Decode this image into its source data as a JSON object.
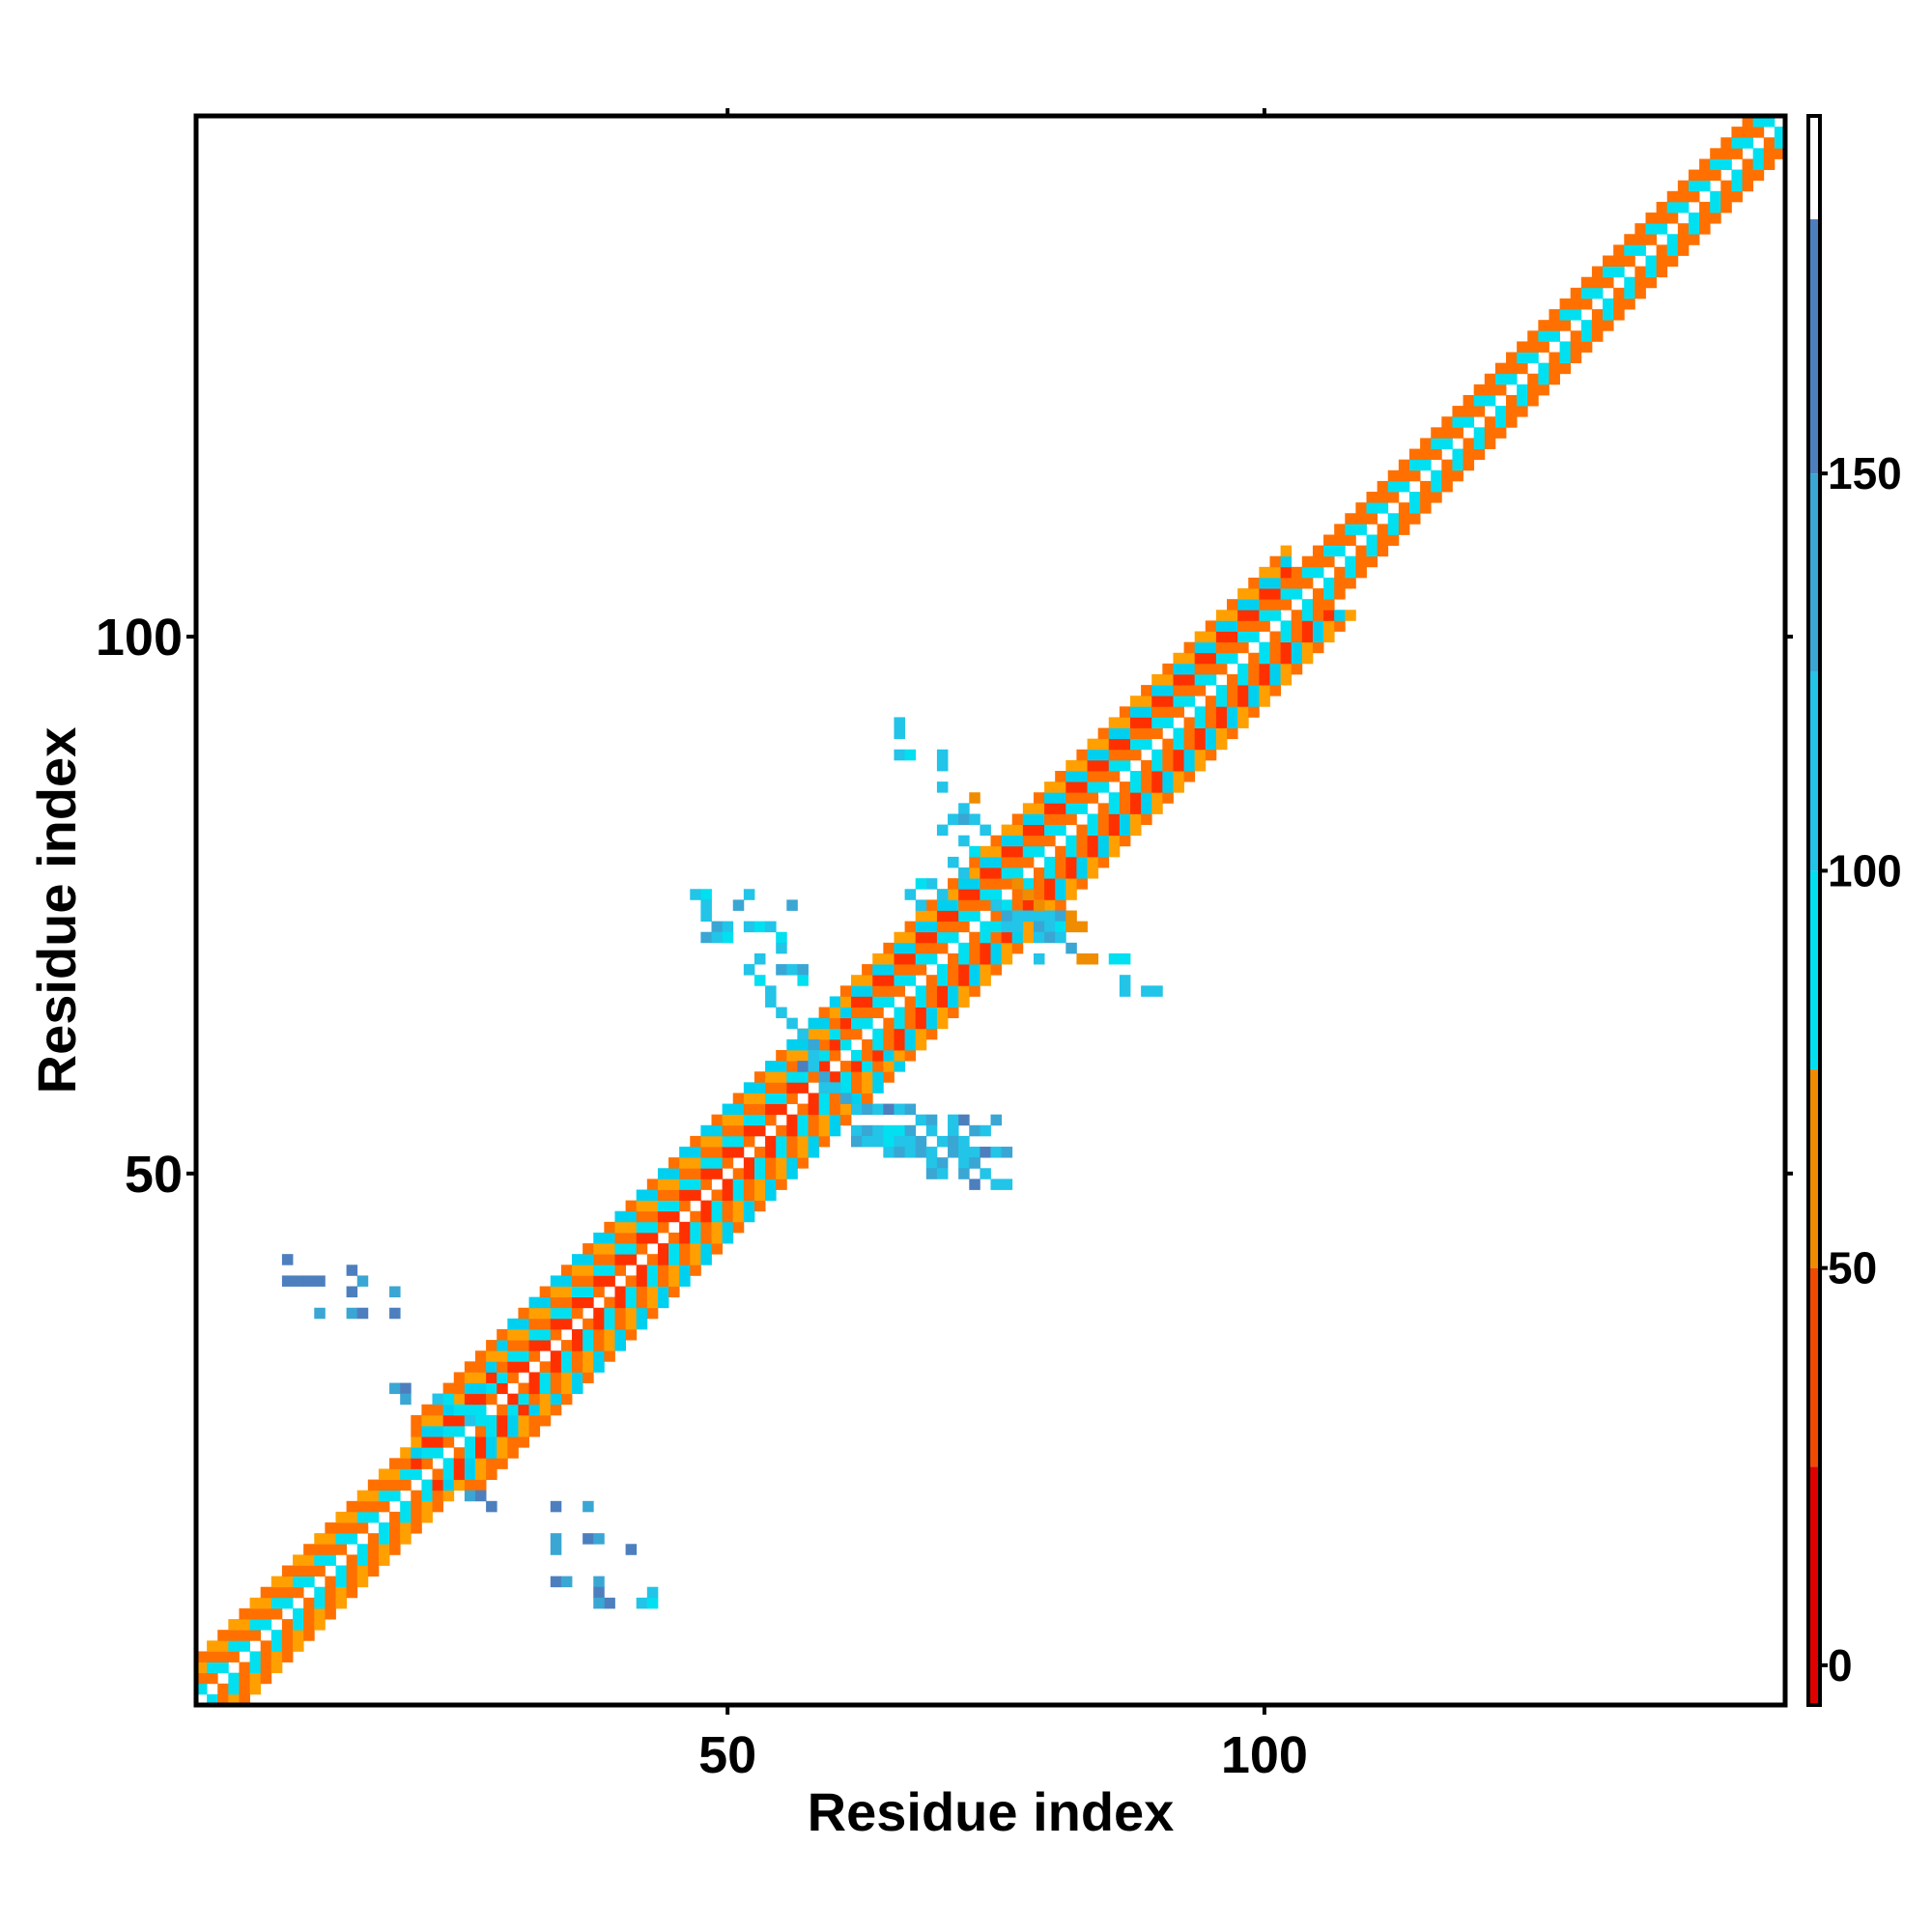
{
  "chart_data": {
    "type": "heatmap",
    "title": "",
    "xlabel": "Residue index",
    "ylabel": "Residue index",
    "xlim": [
      1,
      148
    ],
    "ylim": [
      1,
      148
    ],
    "x_ticks": [
      50,
      100
    ],
    "y_ticks": [
      50,
      100
    ],
    "grid": false,
    "colorbar": {
      "ticks": [
        0,
        50,
        100,
        150
      ],
      "range": [
        -5,
        195
      ],
      "bands": [
        {
          "from": -5,
          "to": 25,
          "color": "#e00000"
        },
        {
          "from": 25,
          "to": 50,
          "color": "#f04a00"
        },
        {
          "from": 50,
          "to": 75,
          "color": "#f08c00"
        },
        {
          "from": 75,
          "to": 100,
          "color": "#00e0f0"
        },
        {
          "from": 100,
          "to": 125,
          "color": "#22c4e8"
        },
        {
          "from": 125,
          "to": 150,
          "color": "#3aa6d4"
        },
        {
          "from": 150,
          "to": 182,
          "color": "#4d7fbf"
        },
        {
          "from": 182,
          "to": 195,
          "color": "#ffffff"
        }
      ]
    },
    "diagonal_band": {
      "segments": [
        {
          "from": 1,
          "to": 20,
          "pattern": [
            "#ff7000",
            "#00e0f0",
            "#ff7000",
            "#ffa000"
          ]
        },
        {
          "from": 20,
          "to": 28,
          "pattern": [
            "#ff7000",
            "#00e0f0",
            "#ff3000",
            "#00d0f0",
            "#ffa000",
            "#ff7000"
          ]
        },
        {
          "from": 28,
          "to": 60,
          "pattern": [
            "#ff7000",
            "#ff3000",
            "#00e0f0",
            "#ff7000",
            "#ffa000",
            "#00d0f0"
          ]
        },
        {
          "from": 60,
          "to": 102,
          "pattern": [
            "#ff7000",
            "#00e0f0",
            "#ff7000",
            "#ff3000",
            "#00d0f0",
            "#ffa000"
          ]
        },
        {
          "from": 102,
          "to": 148,
          "pattern": [
            "#ff7000",
            "#00e0f0",
            "#ff7000"
          ]
        }
      ]
    },
    "offdiagonal_contacts": [
      {
        "x": 9,
        "y": 42,
        "v": 160
      },
      {
        "x": 9,
        "y": 40,
        "v": 155
      },
      {
        "x": 10,
        "y": 40,
        "v": 155
      },
      {
        "x": 11,
        "y": 40,
        "v": 150
      },
      {
        "x": 12,
        "y": 40,
        "v": 150
      },
      {
        "x": 12,
        "y": 37,
        "v": 140
      },
      {
        "x": 15,
        "y": 41,
        "v": 160
      },
      {
        "x": 15,
        "y": 39,
        "v": 150
      },
      {
        "x": 16,
        "y": 40,
        "v": 140
      },
      {
        "x": 15,
        "y": 37,
        "v": 140
      },
      {
        "x": 16,
        "y": 37,
        "v": 150
      },
      {
        "x": 19,
        "y": 39,
        "v": 140
      },
      {
        "x": 19,
        "y": 37,
        "v": 150
      },
      {
        "x": 19,
        "y": 30,
        "v": 140
      },
      {
        "x": 20,
        "y": 30,
        "v": 150
      },
      {
        "x": 20,
        "y": 29,
        "v": 140
      },
      {
        "x": 23,
        "y": 29,
        "v": 110
      },
      {
        "x": 24,
        "y": 29,
        "v": 95
      },
      {
        "x": 25,
        "y": 28,
        "v": 95
      },
      {
        "x": 26,
        "y": 27,
        "v": 110
      },
      {
        "x": 27,
        "y": 27,
        "v": 95
      },
      {
        "x": 26,
        "y": 20,
        "v": 140
      },
      {
        "x": 27,
        "y": 20,
        "v": 150
      },
      {
        "x": 28,
        "y": 19,
        "v": 150
      },
      {
        "x": 34,
        "y": 19,
        "v": 150
      },
      {
        "x": 37,
        "y": 19,
        "v": 140
      },
      {
        "x": 34,
        "y": 16,
        "v": 140
      },
      {
        "x": 34,
        "y": 15,
        "v": 140
      },
      {
        "x": 37,
        "y": 16,
        "v": 150
      },
      {
        "x": 38,
        "y": 16,
        "v": 140
      },
      {
        "x": 41,
        "y": 15,
        "v": 150
      },
      {
        "x": 34,
        "y": 12,
        "v": 150
      },
      {
        "x": 35,
        "y": 12,
        "v": 140
      },
      {
        "x": 38,
        "y": 12,
        "v": 140
      },
      {
        "x": 38,
        "y": 11,
        "v": 150
      },
      {
        "x": 39,
        "y": 10,
        "v": 150
      },
      {
        "x": 38,
        "y": 10,
        "v": 140
      },
      {
        "x": 42,
        "y": 10,
        "v": 110
      },
      {
        "x": 43,
        "y": 10,
        "v": 95
      },
      {
        "x": 43,
        "y": 11,
        "v": 110
      },
      {
        "x": 47,
        "y": 76,
        "v": 110
      },
      {
        "x": 48,
        "y": 76,
        "v": 95
      },
      {
        "x": 48,
        "y": 75,
        "v": 110
      },
      {
        "x": 48,
        "y": 74,
        "v": 110
      },
      {
        "x": 49,
        "y": 73,
        "v": 140
      },
      {
        "x": 50,
        "y": 73,
        "v": 110
      },
      {
        "x": 48,
        "y": 72,
        "v": 140
      },
      {
        "x": 49,
        "y": 72,
        "v": 110
      },
      {
        "x": 50,
        "y": 72,
        "v": 95
      },
      {
        "x": 52,
        "y": 76,
        "v": 110
      },
      {
        "x": 51,
        "y": 75,
        "v": 140
      },
      {
        "x": 52,
        "y": 73,
        "v": 110
      },
      {
        "x": 53,
        "y": 73,
        "v": 95
      },
      {
        "x": 54,
        "y": 73,
        "v": 110
      },
      {
        "x": 56,
        "y": 75,
        "v": 140
      },
      {
        "x": 55,
        "y": 72,
        "v": 95
      },
      {
        "x": 55,
        "y": 71,
        "v": 110
      },
      {
        "x": 53,
        "y": 70,
        "v": 110
      },
      {
        "x": 52,
        "y": 69,
        "v": 110
      },
      {
        "x": 53,
        "y": 68,
        "v": 95
      },
      {
        "x": 54,
        "y": 67,
        "v": 110
      },
      {
        "x": 54,
        "y": 66,
        "v": 110
      },
      {
        "x": 55,
        "y": 69,
        "v": 140
      },
      {
        "x": 56,
        "y": 69,
        "v": 110
      },
      {
        "x": 57,
        "y": 69,
        "v": 140
      },
      {
        "x": 57,
        "y": 68,
        "v": 95
      },
      {
        "x": 55,
        "y": 65,
        "v": 110
      },
      {
        "x": 56,
        "y": 64,
        "v": 110
      },
      {
        "x": 57,
        "y": 63,
        "v": 110
      },
      {
        "x": 58,
        "y": 62,
        "v": 140
      },
      {
        "x": 58,
        "y": 61,
        "v": 110
      },
      {
        "x": 57,
        "y": 60,
        "v": 150
      },
      {
        "x": 58,
        "y": 60,
        "v": 110
      },
      {
        "x": 59,
        "y": 59,
        "v": 140
      },
      {
        "x": 59,
        "y": 58,
        "v": 110
      },
      {
        "x": 60,
        "y": 58,
        "v": 110
      },
      {
        "x": 61,
        "y": 57,
        "v": 140
      },
      {
        "x": 62,
        "y": 56,
        "v": 110
      },
      {
        "x": 63,
        "y": 56,
        "v": 140
      },
      {
        "x": 64,
        "y": 56,
        "v": 110
      },
      {
        "x": 65,
        "y": 56,
        "v": 150
      },
      {
        "x": 66,
        "y": 56,
        "v": 110
      },
      {
        "x": 67,
        "y": 56,
        "v": 140
      },
      {
        "x": 68,
        "y": 55,
        "v": 110
      },
      {
        "x": 69,
        "y": 55,
        "v": 140
      },
      {
        "x": 71,
        "y": 55,
        "v": 110
      },
      {
        "x": 72,
        "y": 55,
        "v": 150
      },
      {
        "x": 75,
        "y": 55,
        "v": 140
      },
      {
        "x": 62,
        "y": 54,
        "v": 110
      },
      {
        "x": 63,
        "y": 54,
        "v": 140
      },
      {
        "x": 64,
        "y": 54,
        "v": 110
      },
      {
        "x": 65,
        "y": 54,
        "v": 95
      },
      {
        "x": 66,
        "y": 54,
        "v": 95
      },
      {
        "x": 67,
        "y": 54,
        "v": 140
      },
      {
        "x": 69,
        "y": 54,
        "v": 110
      },
      {
        "x": 71,
        "y": 54,
        "v": 110
      },
      {
        "x": 73,
        "y": 54,
        "v": 140
      },
      {
        "x": 74,
        "y": 54,
        "v": 110
      },
      {
        "x": 62,
        "y": 53,
        "v": 140
      },
      {
        "x": 63,
        "y": 53,
        "v": 110
      },
      {
        "x": 64,
        "y": 53,
        "v": 110
      },
      {
        "x": 65,
        "y": 53,
        "v": 95
      },
      {
        "x": 66,
        "y": 53,
        "v": 110
      },
      {
        "x": 67,
        "y": 53,
        "v": 110
      },
      {
        "x": 68,
        "y": 53,
        "v": 140
      },
      {
        "x": 70,
        "y": 53,
        "v": 110
      },
      {
        "x": 71,
        "y": 53,
        "v": 140
      },
      {
        "x": 72,
        "y": 53,
        "v": 110
      },
      {
        "x": 65,
        "y": 52,
        "v": 110
      },
      {
        "x": 66,
        "y": 52,
        "v": 140
      },
      {
        "x": 67,
        "y": 52,
        "v": 110
      },
      {
        "x": 68,
        "y": 52,
        "v": 140
      },
      {
        "x": 69,
        "y": 52,
        "v": 110
      },
      {
        "x": 71,
        "y": 52,
        "v": 140
      },
      {
        "x": 72,
        "y": 52,
        "v": 110
      },
      {
        "x": 73,
        "y": 52,
        "v": 110
      },
      {
        "x": 74,
        "y": 52,
        "v": 150
      },
      {
        "x": 75,
        "y": 52,
        "v": 110
      },
      {
        "x": 76,
        "y": 52,
        "v": 140
      },
      {
        "x": 69,
        "y": 51,
        "v": 110
      },
      {
        "x": 70,
        "y": 51,
        "v": 140
      },
      {
        "x": 72,
        "y": 51,
        "v": 110
      },
      {
        "x": 73,
        "y": 51,
        "v": 140
      },
      {
        "x": 69,
        "y": 50,
        "v": 140
      },
      {
        "x": 70,
        "y": 50,
        "v": 110
      },
      {
        "x": 72,
        "y": 50,
        "v": 140
      },
      {
        "x": 74,
        "y": 50,
        "v": 110
      },
      {
        "x": 73,
        "y": 49,
        "v": 150
      },
      {
        "x": 75,
        "y": 49,
        "v": 110
      },
      {
        "x": 76,
        "y": 49,
        "v": 110
      },
      {
        "x": 73,
        "y": 51,
        "v": 140
      },
      {
        "x": 66,
        "y": 92,
        "v": 110
      },
      {
        "x": 66,
        "y": 91,
        "v": 110
      },
      {
        "x": 66,
        "y": 89,
        "v": 110
      },
      {
        "x": 67,
        "y": 89,
        "v": 95
      },
      {
        "x": 70,
        "y": 89,
        "v": 110
      },
      {
        "x": 70,
        "y": 88,
        "v": 110
      },
      {
        "x": 70,
        "y": 86,
        "v": 110
      },
      {
        "x": 73,
        "y": 85,
        "v": 60
      },
      {
        "x": 72,
        "y": 84,
        "v": 110
      },
      {
        "x": 71,
        "y": 83,
        "v": 110
      },
      {
        "x": 72,
        "y": 83,
        "v": 140
      },
      {
        "x": 73,
        "y": 83,
        "v": 110
      },
      {
        "x": 70,
        "y": 82,
        "v": 110
      },
      {
        "x": 74,
        "y": 82,
        "v": 110
      },
      {
        "x": 72,
        "y": 81,
        "v": 110
      },
      {
        "x": 73,
        "y": 80,
        "v": 95
      },
      {
        "x": 71,
        "y": 79,
        "v": 110
      },
      {
        "x": 72,
        "y": 78,
        "v": 110
      },
      {
        "x": 69,
        "y": 77,
        "v": 110
      },
      {
        "x": 75,
        "y": 75,
        "v": 110
      },
      {
        "x": 76,
        "y": 74,
        "v": 140
      },
      {
        "x": 77,
        "y": 74,
        "v": 110
      },
      {
        "x": 78,
        "y": 74,
        "v": 110
      },
      {
        "x": 79,
        "y": 74,
        "v": 110
      },
      {
        "x": 80,
        "y": 74,
        "v": 110
      },
      {
        "x": 81,
        "y": 74,
        "v": 140
      },
      {
        "x": 82,
        "y": 74,
        "v": 60
      },
      {
        "x": 75,
        "y": 73,
        "v": 95
      },
      {
        "x": 76,
        "y": 73,
        "v": 110
      },
      {
        "x": 77,
        "y": 73,
        "v": 110
      },
      {
        "x": 79,
        "y": 73,
        "v": 140
      },
      {
        "x": 80,
        "y": 73,
        "v": 110
      },
      {
        "x": 81,
        "y": 73,
        "v": 95
      },
      {
        "x": 82,
        "y": 73,
        "v": 60
      },
      {
        "x": 83,
        "y": 73,
        "v": 60
      },
      {
        "x": 79,
        "y": 72,
        "v": 110
      },
      {
        "x": 80,
        "y": 72,
        "v": 140
      },
      {
        "x": 81,
        "y": 72,
        "v": 110
      },
      {
        "x": 82,
        "y": 71,
        "v": 140
      },
      {
        "x": 79,
        "y": 70,
        "v": 110
      },
      {
        "x": 83,
        "y": 70,
        "v": 60
      },
      {
        "x": 84,
        "y": 70,
        "v": 60
      },
      {
        "x": 86,
        "y": 70,
        "v": 95
      },
      {
        "x": 87,
        "y": 70,
        "v": 95
      },
      {
        "x": 87,
        "y": 68,
        "v": 110
      },
      {
        "x": 87,
        "y": 67,
        "v": 110
      },
      {
        "x": 89,
        "y": 67,
        "v": 110
      },
      {
        "x": 90,
        "y": 67,
        "v": 110
      },
      {
        "x": 78,
        "y": 76,
        "v": 60
      },
      {
        "x": 77,
        "y": 77,
        "v": 60
      },
      {
        "x": 79,
        "y": 75,
        "v": 60
      },
      {
        "x": 70,
        "y": 76,
        "v": 110
      },
      {
        "x": 68,
        "y": 77,
        "v": 95
      },
      {
        "x": 67,
        "y": 76,
        "v": 110
      },
      {
        "x": 68,
        "y": 75,
        "v": 110
      }
    ]
  }
}
